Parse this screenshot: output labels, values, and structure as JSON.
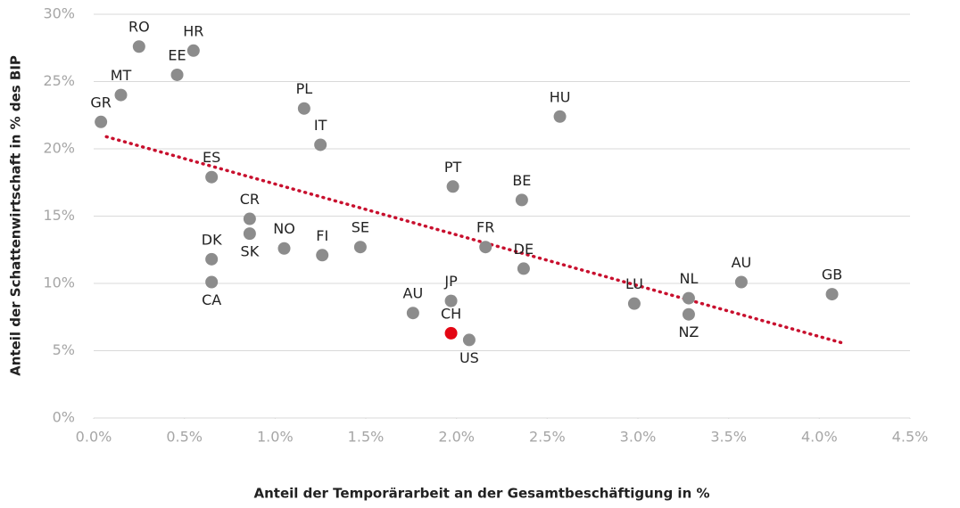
{
  "chart_data": {
    "type": "scatter",
    "xlabel": "Anteil der Temporärarbeit an der Gesamtbeschäftigung in %",
    "ylabel": "Anteil der Schattenwirtschaft in % des BIP",
    "xlim": [
      0,
      4.5
    ],
    "ylim": [
      0,
      30
    ],
    "xticks": [
      {
        "value": 0,
        "label": "0.0%"
      },
      {
        "value": 0.5,
        "label": "0.5%"
      },
      {
        "value": 1,
        "label": "1.0%"
      },
      {
        "value": 1.5,
        "label": "1.5%"
      },
      {
        "value": 2,
        "label": "2.0%"
      },
      {
        "value": 2.5,
        "label": "2.5%"
      },
      {
        "value": 3,
        "label": "3.0%"
      },
      {
        "value": 3.5,
        "label": "3.5%"
      },
      {
        "value": 4,
        "label": "4.0%"
      },
      {
        "value": 4.5,
        "label": "4.5%"
      }
    ],
    "yticks": [
      {
        "value": 0,
        "label": "0%"
      },
      {
        "value": 5,
        "label": "5%"
      },
      {
        "value": 10,
        "label": "10%"
      },
      {
        "value": 15,
        "label": "15%"
      },
      {
        "value": 20,
        "label": "20%"
      },
      {
        "value": 25,
        "label": "25%"
      },
      {
        "value": 30,
        "label": "30%"
      }
    ],
    "grid": true,
    "series": [
      {
        "color": "#8c8c8c",
        "labels": [
          "GR",
          "RO",
          "HR",
          "MT",
          "EE",
          "ES",
          "CR",
          "SK",
          "DK",
          "CA",
          "NO",
          "PL",
          "IT",
          "FI",
          "SE",
          "AU",
          "JP",
          "US",
          "PT",
          "FR",
          "DE",
          "BE",
          "HU",
          "LU",
          "NL",
          "NZ",
          "AU",
          "GB"
        ],
        "x": [
          0.04,
          0.25,
          0.55,
          0.15,
          0.46,
          0.65,
          0.86,
          0.86,
          0.65,
          0.65,
          1.05,
          1.16,
          1.25,
          1.26,
          1.47,
          1.76,
          1.97,
          2.07,
          1.98,
          2.16,
          2.37,
          2.36,
          2.57,
          2.98,
          3.28,
          3.28,
          3.57,
          4.07
        ],
        "values": [
          22.0,
          27.6,
          27.3,
          24.0,
          25.5,
          17.9,
          14.8,
          13.7,
          11.8,
          10.1,
          12.6,
          23.0,
          20.3,
          12.1,
          12.7,
          7.8,
          8.7,
          5.8,
          17.2,
          12.7,
          11.1,
          16.2,
          22.4,
          8.5,
          8.9,
          7.7,
          10.1,
          9.2
        ]
      },
      {
        "color": "#e30613",
        "labels": [
          "CH"
        ],
        "x": [
          1.97
        ],
        "values": [
          6.3
        ]
      }
    ],
    "trendline": {
      "color": "#c8102e",
      "x": [
        0.07,
        4.12
      ],
      "values": [
        20.9,
        5.6
      ]
    }
  }
}
